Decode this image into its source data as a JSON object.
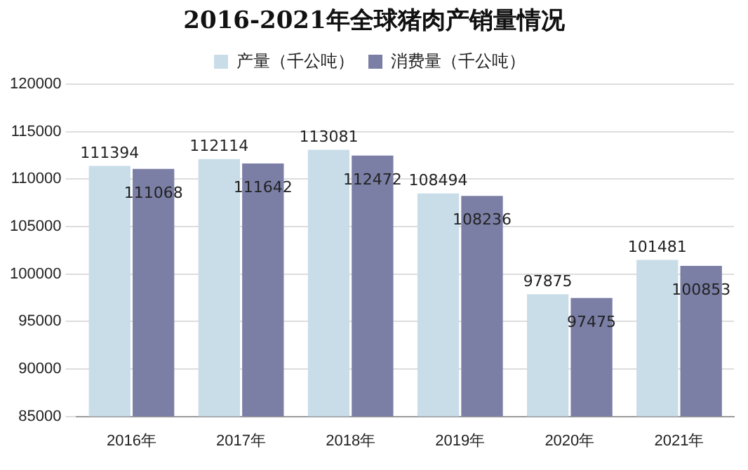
{
  "chart_data": {
    "type": "bar",
    "title": "2016-2021年全球猪肉产销量情况",
    "categories": [
      "2016年",
      "2017年",
      "2018年",
      "2019年",
      "2020年",
      "2021年"
    ],
    "series": [
      {
        "name": "产量（千公吨）",
        "color": "#c9dde9",
        "values": [
          111394,
          112114,
          113081,
          108494,
          97875,
          101481
        ]
      },
      {
        "name": "消费量（千公吨）",
        "color": "#7b7fa6",
        "values": [
          111068,
          111642,
          112472,
          108236,
          97475,
          100853
        ]
      }
    ],
    "ylim": [
      85000,
      120000
    ],
    "yticks": [
      85000,
      90000,
      95000,
      100000,
      105000,
      110000,
      115000,
      120000
    ],
    "grid": "y",
    "legend": "top",
    "data_labels": true
  }
}
